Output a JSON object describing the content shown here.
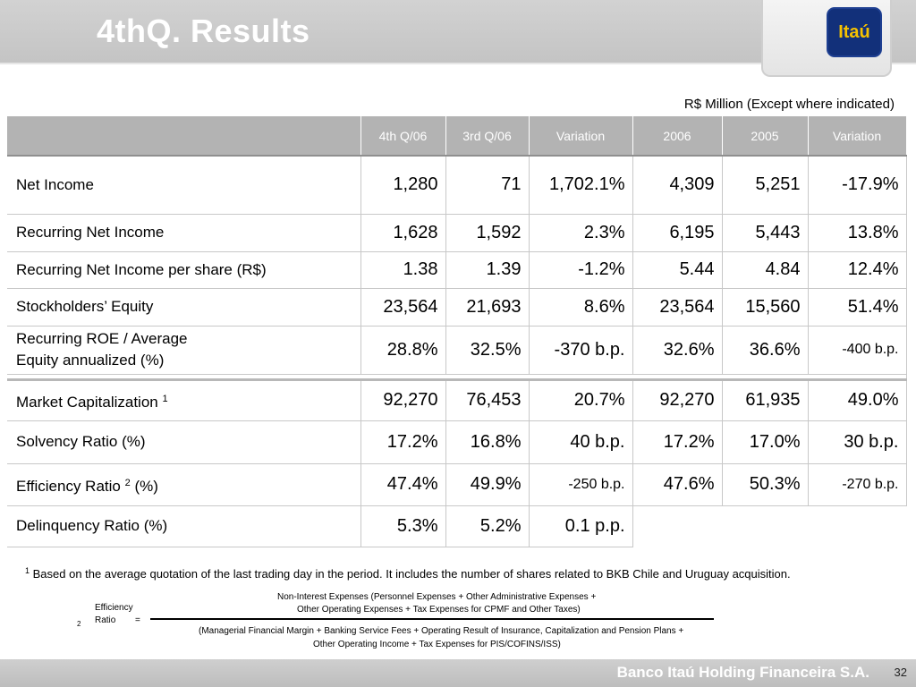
{
  "header": {
    "title": "4thQ. Results",
    "logo_text": "Itaú"
  },
  "unit_note": "R$ Million (Except where indicated)",
  "table": {
    "columns": [
      "",
      "4th Q/06",
      "3rd Q/06",
      "Variation",
      "2006",
      "2005",
      "Variation"
    ],
    "rows": [
      {
        "label": "Net Income",
        "values": [
          "1,280",
          "71",
          "1,702.1%",
          "4,309",
          "5,251",
          "-17.9%"
        ]
      },
      {
        "label": "Recurring Net Income",
        "values": [
          "1,628",
          "1,592",
          "2.3%",
          "6,195",
          "5,443",
          "13.8%"
        ]
      },
      {
        "label": "Recurring Net Income per share (R$)",
        "values": [
          "1.38",
          "1.39",
          "-1.2%",
          "5.44",
          "4.84",
          "12.4%"
        ]
      },
      {
        "label": "Stockholders’ Equity",
        "values": [
          "23,564",
          "21,693",
          "8.6%",
          "23,564",
          "15,560",
          "51.4%"
        ]
      },
      {
        "label": "Recurring ROE / Average Equity annualized (%)",
        "values": [
          "28.8%",
          "32.5%",
          "-370 b.p.",
          "32.6%",
          "36.6%",
          "-400 b.p."
        ]
      },
      {
        "label": "Market Capitalization",
        "sup": "1",
        "values": [
          "92,270",
          "76,453",
          "20.7%",
          "92,270",
          "61,935",
          "49.0%"
        ]
      },
      {
        "label": "Solvency Ratio (%)",
        "values": [
          "17.2%",
          "16.8%",
          "40 b.p.",
          "17.2%",
          "17.0%",
          "30 b.p."
        ]
      },
      {
        "label": "Efficiency Ratio",
        "sup": "2",
        "label_suffix": " (%)",
        "values": [
          "47.4%",
          "49.9%",
          "-250 b.p.",
          "47.6%",
          "50.3%",
          "-270 b.p."
        ]
      },
      {
        "label": "Delinquency Ratio (%)",
        "values": [
          "5.3%",
          "5.2%",
          "0.1 p.p."
        ]
      }
    ]
  },
  "footnote1": {
    "num": "1",
    "text": "Based on the average quotation of the last trading day in the period. It includes the number of shares related to BKB Chile and Uruguay acquisition."
  },
  "formula": {
    "num": "2",
    "lhs_line1": "Efficiency",
    "lhs_line2": "Ratio",
    "equals": "=",
    "numerator_line1": "Non-Interest Expenses (Personnel Expenses + Other Administrative Expenses +",
    "numerator_line2": "Other Operating Expenses + Tax Expenses for CPMF and Other Taxes)",
    "denominator_line1": "(Managerial Financial Margin + Banking Service Fees + Operating Result of Insurance, Capitalization and Pension Plans +",
    "denominator_line2": "Other Operating Income + Tax Expenses for PIS/COFINS/ISS)"
  },
  "footer": {
    "company": "Banco Itaú Holding Financeira S.A.",
    "page": "32"
  }
}
